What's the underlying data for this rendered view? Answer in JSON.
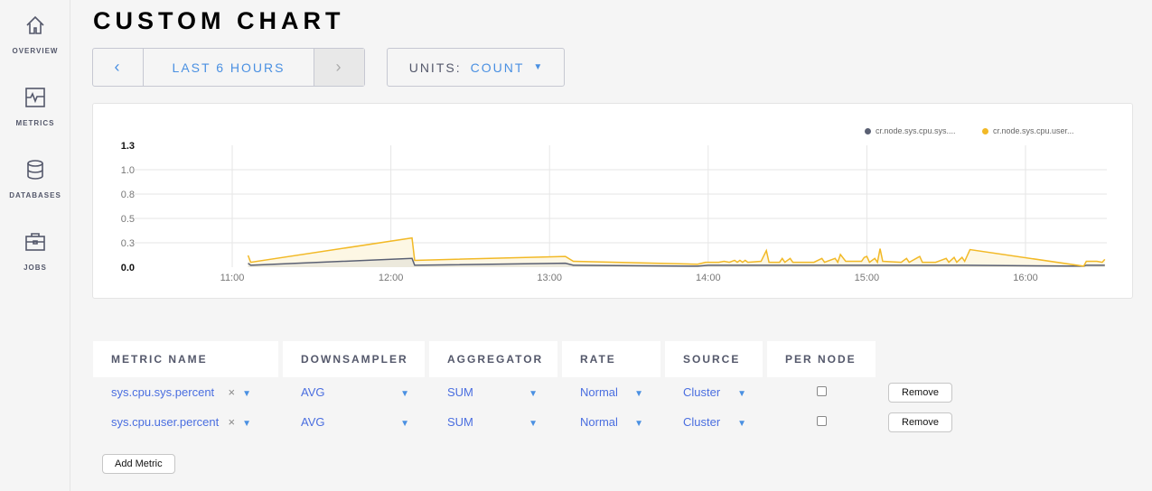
{
  "sidebar": {
    "items": [
      {
        "label": "OVERVIEW",
        "icon": "home-icon"
      },
      {
        "label": "METRICS",
        "icon": "metrics-icon"
      },
      {
        "label": "DATABASES",
        "icon": "database-icon"
      },
      {
        "label": "JOBS",
        "icon": "briefcase-icon"
      }
    ]
  },
  "page": {
    "title": "CUSTOM CHART"
  },
  "time_selector": {
    "label": "LAST 6 HOURS",
    "prev": "‹",
    "next": "›"
  },
  "units": {
    "label": "UNITS:",
    "value": "COUNT"
  },
  "chart_data": {
    "type": "area",
    "x_ticks": [
      "11:00",
      "12:00",
      "13:00",
      "14:00",
      "15:00",
      "16:00"
    ],
    "y_ticks": [
      "0.0",
      "0.3",
      "0.5",
      "0.8",
      "1.0",
      "1.3"
    ],
    "y_tick_values": [
      0,
      0.25,
      0.5,
      0.75,
      1.0,
      1.25
    ],
    "ylim": [
      0,
      1.25
    ],
    "grid": true,
    "legend_position": "top-right",
    "series": [
      {
        "name": "cr.node.sys.cpu.sys....",
        "color": "#5a6073",
        "fill": "#ece9dc",
        "points": [
          [
            "11:06",
            0.04
          ],
          [
            "11:07",
            0.02
          ],
          [
            "12:08",
            0.09
          ],
          [
            "12:09",
            0.02
          ],
          [
            "13:06",
            0.04
          ],
          [
            "13:09",
            0.02
          ],
          [
            "13:56",
            0.01
          ],
          [
            "14:00",
            0.02
          ],
          [
            "15:37",
            0.02
          ],
          [
            "16:22",
            0.01
          ],
          [
            "16:23",
            0.02
          ],
          [
            "16:30",
            0.02
          ]
        ]
      },
      {
        "name": "cr.node.sys.cpu.user...",
        "color": "#f2b926",
        "fill": "#fdf7e4",
        "points": [
          [
            "11:06",
            0.12
          ],
          [
            "11:07",
            0.05
          ],
          [
            "12:08",
            0.3
          ],
          [
            "12:09",
            0.07
          ],
          [
            "13:06",
            0.11
          ],
          [
            "13:09",
            0.06
          ],
          [
            "13:56",
            0.03
          ],
          [
            "13:59",
            0.05
          ],
          [
            "14:04",
            0.05
          ],
          [
            "14:06",
            0.06
          ],
          [
            "14:08",
            0.05
          ],
          [
            "14:10",
            0.07
          ],
          [
            "14:11",
            0.05
          ],
          [
            "14:12",
            0.07
          ],
          [
            "14:13",
            0.05
          ],
          [
            "14:14",
            0.07
          ],
          [
            "14:15",
            0.05
          ],
          [
            "14:20",
            0.06
          ],
          [
            "14:22",
            0.17
          ],
          [
            "14:23",
            0.05
          ],
          [
            "14:27",
            0.05
          ],
          [
            "14:28",
            0.09
          ],
          [
            "14:29",
            0.05
          ],
          [
            "14:31",
            0.09
          ],
          [
            "14:32",
            0.05
          ],
          [
            "14:40",
            0.05
          ],
          [
            "14:43",
            0.09
          ],
          [
            "14:44",
            0.05
          ],
          [
            "14:48",
            0.09
          ],
          [
            "14:49",
            0.05
          ],
          [
            "14:50",
            0.13
          ],
          [
            "14:52",
            0.06
          ],
          [
            "14:58",
            0.06
          ],
          [
            "14:59",
            0.1
          ],
          [
            "15:00",
            0.11
          ],
          [
            "15:01",
            0.05
          ],
          [
            "15:03",
            0.09
          ],
          [
            "15:04",
            0.05
          ],
          [
            "15:05",
            0.19
          ],
          [
            "15:06",
            0.06
          ],
          [
            "15:13",
            0.05
          ],
          [
            "15:15",
            0.09
          ],
          [
            "15:16",
            0.05
          ],
          [
            "15:20",
            0.11
          ],
          [
            "15:21",
            0.05
          ],
          [
            "15:26",
            0.05
          ],
          [
            "15:27",
            0.06
          ],
          [
            "15:30",
            0.09
          ],
          [
            "15:31",
            0.05
          ],
          [
            "15:33",
            0.1
          ],
          [
            "15:34",
            0.05
          ],
          [
            "15:36",
            0.1
          ],
          [
            "15:37",
            0.06
          ],
          [
            "15:39",
            0.18
          ],
          [
            "16:22",
            0.01
          ],
          [
            "16:23",
            0.06
          ],
          [
            "16:27",
            0.06
          ],
          [
            "16:29",
            0.05
          ],
          [
            "16:30",
            0.08
          ]
        ]
      }
    ]
  },
  "table": {
    "headers": [
      "METRIC NAME",
      "DOWNSAMPLER",
      "AGGREGATOR",
      "RATE",
      "SOURCE",
      "PER NODE"
    ],
    "rows": [
      {
        "metric": "sys.cpu.sys.percent",
        "downsampler": "AVG",
        "aggregator": "SUM",
        "rate": "Normal",
        "source": "Cluster",
        "per_node": false,
        "remove": "Remove"
      },
      {
        "metric": "sys.cpu.user.percent",
        "downsampler": "AVG",
        "aggregator": "SUM",
        "rate": "Normal",
        "source": "Cluster",
        "per_node": false,
        "remove": "Remove"
      }
    ],
    "add_metric": "Add Metric",
    "clear_icon": "×",
    "dropdown_icon": "▼"
  }
}
